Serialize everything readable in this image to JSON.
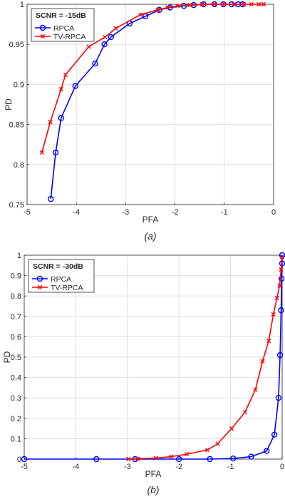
{
  "colors": {
    "rpca": "#0000ff",
    "tv_rpca": "#ff0000",
    "grid": "#d9d9d9",
    "axes": "#262626"
  },
  "chart_data": [
    {
      "type": "line",
      "caption": "(a)",
      "legend_title": "SCNR = -15dB",
      "legend_placement": "top-left",
      "xlabel": "PFA",
      "ylabel": "PD",
      "xlim": [
        -5,
        0
      ],
      "ylim": [
        0.75,
        1
      ],
      "xticks": [
        "-5",
        "-4",
        "-3",
        "-2",
        "-1",
        "0"
      ],
      "yticks": [
        "0.75",
        "0.8",
        "0.85",
        "0.9",
        "0.95",
        "1"
      ],
      "xtick_values": [
        -5,
        -4,
        -3,
        -2,
        -1,
        0
      ],
      "ytick_values": [
        0.75,
        0.8,
        0.85,
        0.9,
        0.95,
        1
      ],
      "grid": true,
      "series": [
        {
          "name": "RPCA",
          "color": "#0000ff",
          "marker": "circle",
          "x": [
            -4.52,
            -4.42,
            -4.31,
            -4.02,
            -3.62,
            -3.43,
            -3.3,
            -2.92,
            -2.6,
            -2.32,
            -2.1,
            -1.82,
            -1.62,
            -1.42,
            -1.2,
            -1.02,
            -0.85,
            -0.72,
            -0.63
          ],
          "y": [
            0.757,
            0.815,
            0.858,
            0.898,
            0.926,
            0.95,
            0.959,
            0.976,
            0.985,
            0.993,
            0.996,
            0.998,
            0.999,
            1.0,
            1.0,
            1.0,
            1.0,
            1.0,
            1.0
          ]
        },
        {
          "name": "TV-RPCA",
          "color": "#ff0000",
          "marker": "x",
          "x": [
            -4.7,
            -4.53,
            -4.31,
            -4.22,
            -3.75,
            -3.42,
            -3.2,
            -2.7,
            -2.35,
            -2.15,
            -1.95,
            -1.7,
            -1.45,
            -1.2,
            -1.0,
            -0.8,
            -0.6,
            -0.45,
            -0.3,
            -0.2
          ],
          "y": [
            0.815,
            0.853,
            0.894,
            0.912,
            0.947,
            0.959,
            0.97,
            0.987,
            0.993,
            0.996,
            0.998,
            0.999,
            1.0,
            1.0,
            1.0,
            1.0,
            1.0,
            1.0,
            1.0,
            1.0
          ]
        }
      ]
    },
    {
      "type": "line",
      "caption": "(b)",
      "legend_title": "SCNR = -30dB",
      "legend_placement": "top-left",
      "xlabel": "PFA",
      "ylabel": "PD",
      "xlim": [
        -5,
        0
      ],
      "ylim": [
        0,
        1
      ],
      "xticks": [
        "-5",
        "-4",
        "-3",
        "-2",
        "-1",
        "0"
      ],
      "yticks": [
        "0",
        "0.1",
        "0.2",
        "0.3",
        "0.4",
        "0.5",
        "0.6",
        "0.7",
        "0.8",
        "0.9",
        "1"
      ],
      "xtick_values": [
        -5,
        -4,
        -3,
        -2,
        -1,
        0
      ],
      "ytick_values": [
        0,
        0.1,
        0.2,
        0.3,
        0.4,
        0.5,
        0.6,
        0.7,
        0.8,
        0.9,
        1
      ],
      "grid": true,
      "series": [
        {
          "name": "RPCA",
          "color": "#0000ff",
          "marker": "circle",
          "x": [
            -5.0,
            -3.6,
            -2.85,
            -2.0,
            -1.4,
            -0.95,
            -0.6,
            -0.3,
            -0.15,
            -0.07,
            -0.04,
            -0.02,
            -0.01,
            0.0,
            0.0
          ],
          "y": [
            0.0,
            0.0,
            0.0,
            0.0,
            0.0,
            0.003,
            0.012,
            0.04,
            0.12,
            0.3,
            0.51,
            0.73,
            0.885,
            0.96,
            1.0
          ]
        },
        {
          "name": "TV-RPCA",
          "color": "#ff0000",
          "marker": "x",
          "x": [
            -2.98,
            -2.8,
            -2.45,
            -2.15,
            -1.85,
            -1.45,
            -1.25,
            -0.98,
            -0.72,
            -0.52,
            -0.38,
            -0.26,
            -0.17,
            -0.1,
            -0.05,
            -0.02,
            0.0
          ],
          "y": [
            0.0,
            0.002,
            0.005,
            0.012,
            0.024,
            0.045,
            0.075,
            0.15,
            0.23,
            0.34,
            0.48,
            0.58,
            0.71,
            0.79,
            0.85,
            0.93,
            0.99
          ]
        }
      ]
    }
  ]
}
